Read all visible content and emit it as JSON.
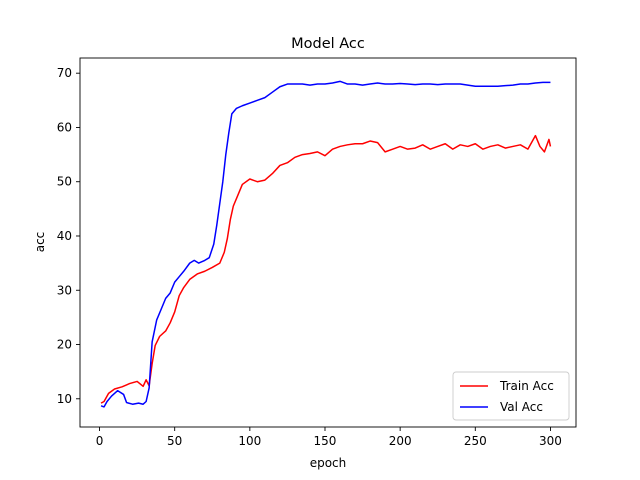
{
  "chart_data": {
    "type": "line",
    "title": "Model Acc",
    "xlabel": "epoch",
    "ylabel": "acc",
    "xlim": [
      -13,
      317
    ],
    "ylim": [
      4.8,
      72.8
    ],
    "xticks": [
      0,
      50,
      100,
      150,
      200,
      250,
      300
    ],
    "yticks": [
      10,
      20,
      30,
      40,
      50,
      60,
      70
    ],
    "grid": false,
    "legend_position": "lower-right",
    "series": [
      {
        "name": "Train Acc",
        "color": "#ff0000",
        "points": [
          [
            1,
            9.2
          ],
          [
            3,
            9.5
          ],
          [
            6,
            11.0
          ],
          [
            10,
            11.8
          ],
          [
            15,
            12.2
          ],
          [
            20,
            12.8
          ],
          [
            25,
            13.2
          ],
          [
            29,
            12.3
          ],
          [
            31,
            13.5
          ],
          [
            33,
            12.4
          ],
          [
            35,
            16.5
          ],
          [
            37,
            19.8
          ],
          [
            40,
            21.5
          ],
          [
            44,
            22.5
          ],
          [
            47,
            24.0
          ],
          [
            50,
            26.0
          ],
          [
            53,
            29.0
          ],
          [
            56,
            30.5
          ],
          [
            60,
            32.0
          ],
          [
            65,
            33.0
          ],
          [
            70,
            33.5
          ],
          [
            75,
            34.2
          ],
          [
            80,
            35.0
          ],
          [
            83,
            37.0
          ],
          [
            85,
            39.5
          ],
          [
            87,
            43.0
          ],
          [
            89,
            45.5
          ],
          [
            92,
            47.5
          ],
          [
            95,
            49.5
          ],
          [
            100,
            50.5
          ],
          [
            105,
            50.0
          ],
          [
            110,
            50.3
          ],
          [
            115,
            51.5
          ],
          [
            120,
            53.0
          ],
          [
            125,
            53.5
          ],
          [
            130,
            54.5
          ],
          [
            135,
            55.0
          ],
          [
            140,
            55.2
          ],
          [
            145,
            55.5
          ],
          [
            150,
            54.8
          ],
          [
            155,
            56.0
          ],
          [
            160,
            56.5
          ],
          [
            165,
            56.8
          ],
          [
            170,
            57.0
          ],
          [
            175,
            57.0
          ],
          [
            180,
            57.5
          ],
          [
            185,
            57.2
          ],
          [
            190,
            55.5
          ],
          [
            195,
            56.0
          ],
          [
            200,
            56.5
          ],
          [
            205,
            56.0
          ],
          [
            210,
            56.2
          ],
          [
            215,
            56.8
          ],
          [
            220,
            56.0
          ],
          [
            225,
            56.5
          ],
          [
            230,
            57.0
          ],
          [
            235,
            56.0
          ],
          [
            240,
            56.8
          ],
          [
            245,
            56.5
          ],
          [
            250,
            57.0
          ],
          [
            255,
            56.0
          ],
          [
            260,
            56.5
          ],
          [
            265,
            56.8
          ],
          [
            270,
            56.2
          ],
          [
            275,
            56.5
          ],
          [
            280,
            56.8
          ],
          [
            285,
            56.0
          ],
          [
            290,
            58.5
          ],
          [
            293,
            56.5
          ],
          [
            296,
            55.5
          ],
          [
            299,
            57.8
          ],
          [
            300,
            56.5
          ]
        ]
      },
      {
        "name": "Val Acc",
        "color": "#0000ff",
        "points": [
          [
            1,
            8.7
          ],
          [
            3,
            8.5
          ],
          [
            5,
            9.5
          ],
          [
            8,
            10.5
          ],
          [
            12,
            11.5
          ],
          [
            16,
            10.8
          ],
          [
            18,
            9.3
          ],
          [
            22,
            9.0
          ],
          [
            26,
            9.2
          ],
          [
            29,
            9.0
          ],
          [
            31,
            9.5
          ],
          [
            33,
            12.0
          ],
          [
            35,
            20.5
          ],
          [
            38,
            24.5
          ],
          [
            41,
            26.5
          ],
          [
            44,
            28.5
          ],
          [
            47,
            29.5
          ],
          [
            50,
            31.5
          ],
          [
            53,
            32.5
          ],
          [
            56,
            33.5
          ],
          [
            60,
            35.0
          ],
          [
            63,
            35.5
          ],
          [
            66,
            35.0
          ],
          [
            70,
            35.5
          ],
          [
            73,
            36.0
          ],
          [
            76,
            38.5
          ],
          [
            78,
            42.0
          ],
          [
            80,
            46.0
          ],
          [
            82,
            50.0
          ],
          [
            84,
            55.0
          ],
          [
            86,
            59.0
          ],
          [
            88,
            62.5
          ],
          [
            91,
            63.5
          ],
          [
            95,
            64.0
          ],
          [
            100,
            64.5
          ],
          [
            105,
            65.0
          ],
          [
            110,
            65.5
          ],
          [
            115,
            66.5
          ],
          [
            120,
            67.5
          ],
          [
            125,
            68.0
          ],
          [
            130,
            68.0
          ],
          [
            135,
            68.0
          ],
          [
            140,
            67.8
          ],
          [
            145,
            68.0
          ],
          [
            150,
            68.0
          ],
          [
            155,
            68.2
          ],
          [
            160,
            68.5
          ],
          [
            165,
            68.0
          ],
          [
            170,
            68.0
          ],
          [
            175,
            67.8
          ],
          [
            180,
            68.0
          ],
          [
            185,
            68.2
          ],
          [
            190,
            68.0
          ],
          [
            195,
            68.0
          ],
          [
            200,
            68.1
          ],
          [
            205,
            68.0
          ],
          [
            210,
            67.9
          ],
          [
            215,
            68.0
          ],
          [
            220,
            68.0
          ],
          [
            225,
            67.9
          ],
          [
            230,
            68.0
          ],
          [
            235,
            68.0
          ],
          [
            240,
            68.0
          ],
          [
            245,
            67.8
          ],
          [
            250,
            67.6
          ],
          [
            255,
            67.6
          ],
          [
            260,
            67.6
          ],
          [
            265,
            67.6
          ],
          [
            270,
            67.7
          ],
          [
            275,
            67.8
          ],
          [
            280,
            68.0
          ],
          [
            285,
            68.0
          ],
          [
            290,
            68.2
          ],
          [
            295,
            68.3
          ],
          [
            300,
            68.3
          ]
        ]
      }
    ]
  }
}
